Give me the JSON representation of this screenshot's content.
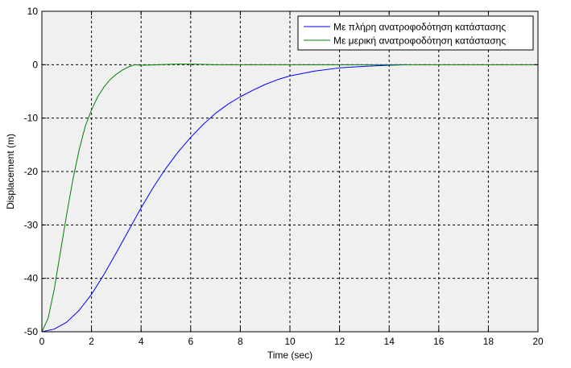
{
  "chart_data": {
    "type": "line",
    "title": "",
    "xlabel": "Time (sec)",
    "ylabel": "Displacement (m)",
    "xlim": [
      0,
      20
    ],
    "ylim": [
      -50,
      10
    ],
    "xticks": [
      0,
      2,
      4,
      6,
      8,
      10,
      12,
      14,
      16,
      18,
      20
    ],
    "yticks": [
      -50,
      -40,
      -30,
      -20,
      -10,
      0,
      10
    ],
    "grid": true,
    "legend_position": "top-right",
    "plot_background": "#f0f0f0",
    "series": [
      {
        "name": "Με πλήρη ανατροφοδότηση κατάστασης",
        "color": "#0000ff",
        "x": [
          0,
          0.5,
          1,
          1.5,
          2,
          2.5,
          3,
          3.5,
          4,
          4.5,
          5,
          5.5,
          6,
          6.5,
          7,
          7.5,
          8,
          8.5,
          9,
          9.5,
          10,
          11,
          12,
          13,
          14,
          14.7
        ],
        "y": [
          -50,
          -49.5,
          -48.2,
          -46,
          -43,
          -39.3,
          -35.2,
          -31,
          -26.8,
          -22.9,
          -19.4,
          -16.3,
          -13.6,
          -11.2,
          -9.1,
          -7.4,
          -6.0,
          -4.8,
          -3.7,
          -2.8,
          -2.1,
          -1.2,
          -0.6,
          -0.3,
          -0.1,
          0
        ]
      },
      {
        "name": "Με μερική ανατροφοδότηση κατάστασης",
        "color": "#008000",
        "x": [
          0,
          0.25,
          0.5,
          0.75,
          1,
          1.25,
          1.5,
          1.75,
          2,
          2.25,
          2.5,
          2.75,
          3,
          3.25,
          3.5,
          3.75,
          4,
          4.5,
          5,
          5.5,
          6,
          7,
          8,
          10,
          12,
          14,
          16,
          18,
          20
        ],
        "y": [
          -50,
          -47.5,
          -42,
          -35,
          -28,
          -21.5,
          -16,
          -11.5,
          -8.5,
          -6,
          -4.2,
          -2.8,
          -1.8,
          -1.0,
          -0.4,
          0,
          -0.1,
          -0.05,
          0.05,
          0.1,
          0.1,
          0,
          0,
          0,
          0,
          0,
          0,
          0,
          0
        ]
      }
    ]
  }
}
